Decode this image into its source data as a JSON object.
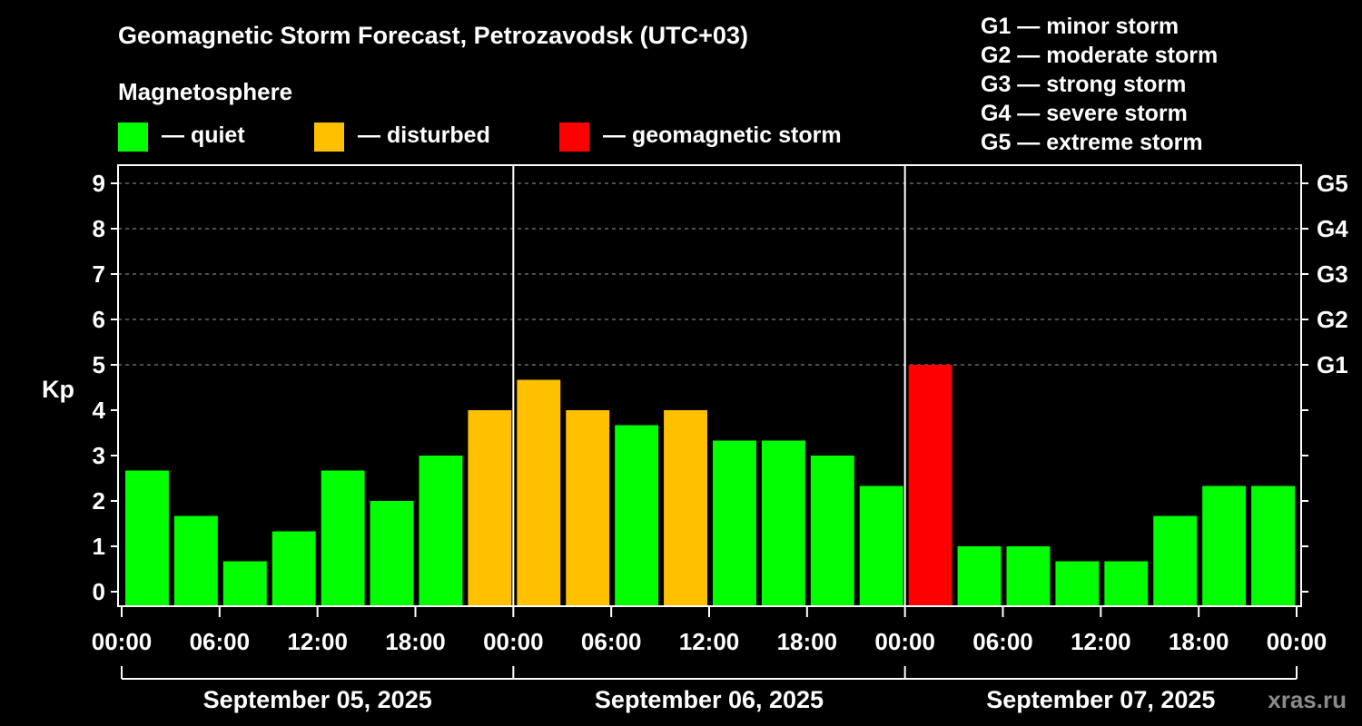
{
  "chart_data": {
    "type": "bar",
    "title": "Geomagnetic Storm Forecast, Petrozavodsk (UTC+03)",
    "ylabel": "Kp",
    "ylim": [
      0,
      9
    ],
    "yticks": [
      "0",
      "1",
      "2",
      "3",
      "4",
      "5",
      "6",
      "7",
      "8",
      "9"
    ],
    "right_ticks": [
      {
        "kp": 5,
        "label": "G1"
      },
      {
        "kp": 6,
        "label": "G2"
      },
      {
        "kp": 7,
        "label": "G3"
      },
      {
        "kp": 8,
        "label": "G4"
      },
      {
        "kp": 9,
        "label": "G5"
      }
    ],
    "x_tick_labels": [
      "00:00",
      "06:00",
      "12:00",
      "18:00",
      "00:00",
      "06:00",
      "12:00",
      "18:00",
      "00:00",
      "06:00",
      "12:00",
      "18:00",
      "00:00"
    ],
    "days": [
      "September 05, 2025",
      "September 06, 2025",
      "September 07, 2025"
    ],
    "values": [
      2.67,
      1.67,
      0.67,
      1.33,
      2.67,
      2.0,
      3.0,
      4.0,
      4.67,
      4.0,
      3.67,
      4.0,
      3.33,
      3.33,
      3.0,
      2.33,
      5.0,
      1.0,
      1.0,
      0.67,
      0.67,
      1.67,
      2.33,
      2.33
    ],
    "colors": [
      "quiet",
      "quiet",
      "quiet",
      "quiet",
      "quiet",
      "quiet",
      "quiet",
      "disturbed",
      "disturbed",
      "disturbed",
      "quiet",
      "disturbed",
      "quiet",
      "quiet",
      "quiet",
      "quiet",
      "storm",
      "quiet",
      "quiet",
      "quiet",
      "quiet",
      "quiet",
      "quiet",
      "quiet"
    ],
    "grid": true,
    "legend": {
      "heading": "Magnetosphere",
      "items": [
        {
          "key": "quiet",
          "label": "— quiet",
          "color": "#00ff00"
        },
        {
          "key": "disturbed",
          "label": "— disturbed",
          "color": "#ffc000"
        },
        {
          "key": "storm",
          "label": "— geomagnetic storm",
          "color": "#ff0000"
        }
      ]
    },
    "storm_scale": [
      "G1 — minor storm",
      "G2 — moderate storm",
      "G3 — strong storm",
      "G4 — severe storm",
      "G5 — extreme storm"
    ],
    "watermark": "xras.ru"
  }
}
